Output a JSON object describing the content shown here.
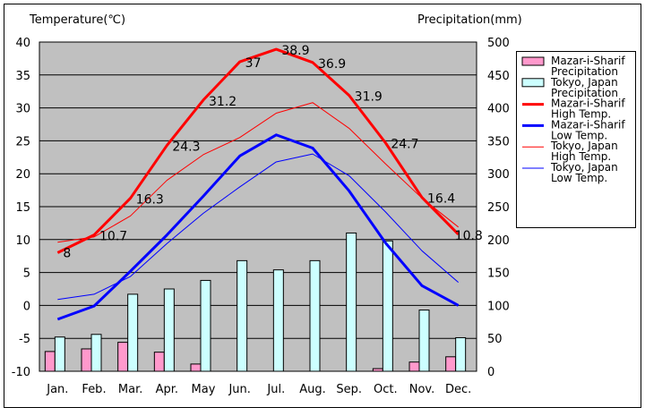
{
  "chart_data": {
    "type": "line",
    "left_axis_label": "Temperature(℃)",
    "right_axis_label": "Precipitation(mm)",
    "left_ylim": [
      -10,
      40
    ],
    "left_ticks": [
      "40",
      "35",
      "30",
      "25",
      "20",
      "15",
      "10",
      "5",
      "0",
      "-5",
      "-10"
    ],
    "right_ylim": [
      0,
      500
    ],
    "right_ticks": [
      "500",
      "450",
      "400",
      "350",
      "300",
      "250",
      "200",
      "150",
      "100",
      "50",
      "0"
    ],
    "grid": true,
    "legend_position": "right",
    "categories": [
      "Jan.",
      "Feb.",
      "Mar.",
      "Apr.",
      "May",
      "Jun.",
      "Jul.",
      "Aug.",
      "Sep.",
      "Oct.",
      "Nov.",
      "Dec."
    ],
    "bar_series": [
      {
        "name": "Mazar-i-Sharif Precipitation",
        "legend": [
          "Mazar-i-Sharif",
          "Precipitation"
        ],
        "color": "#ff99cc",
        "values": [
          30,
          34,
          44,
          29,
          11,
          0,
          0,
          0,
          0,
          4,
          14,
          22
        ]
      },
      {
        "name": "Tokyo, Japan Precipitation",
        "legend": [
          "Tokyo, Japan",
          "Precipitation"
        ],
        "color": "#ccffff",
        "values": [
          52,
          56,
          117,
          125,
          138,
          168,
          154,
          168,
          210,
          198,
          93,
          51
        ]
      }
    ],
    "line_series": [
      {
        "name": "Mazar-i-Sharif High Temp.",
        "legend": [
          "Mazar-i-Sharif",
          "High Temp."
        ],
        "color": "#ff0000",
        "width": "thick",
        "values": [
          8,
          10.7,
          16.3,
          24.3,
          31.2,
          37,
          38.9,
          36.9,
          31.9,
          24.7,
          16.4,
          10.8
        ],
        "labels": [
          "8",
          "10.7",
          "16.3",
          "24.3",
          "31.2",
          "37",
          "38.9",
          "36.9",
          "31.9",
          "24.7",
          "16.4",
          "10.8"
        ]
      },
      {
        "name": "Mazar-i-Sharif Low Temp.",
        "legend": [
          "Mazar-i-Sharif",
          "Low Temp."
        ],
        "color": "#0000ff",
        "width": "thick",
        "values": [
          -2.1,
          -0.1,
          5.2,
          10.7,
          16.6,
          22.7,
          25.9,
          23.9,
          17.4,
          9.5,
          3,
          0
        ]
      },
      {
        "name": "Tokyo, Japan High Temp.",
        "legend": [
          "Tokyo, Japan",
          "High Temp."
        ],
        "color": "#ff0000",
        "width": "thin",
        "values": [
          9.6,
          10.4,
          13.6,
          19,
          22.9,
          25.5,
          29.2,
          30.8,
          26.9,
          21.5,
          16.3,
          11.9
        ]
      },
      {
        "name": "Tokyo, Japan Low Temp.",
        "legend": [
          "Tokyo, Japan",
          "Low Temp."
        ],
        "color": "#0000ff",
        "width": "thin",
        "values": [
          0.9,
          1.7,
          4.4,
          9.4,
          14,
          18,
          21.8,
          23,
          19.7,
          14.2,
          8.3,
          3.5
        ]
      }
    ]
  }
}
